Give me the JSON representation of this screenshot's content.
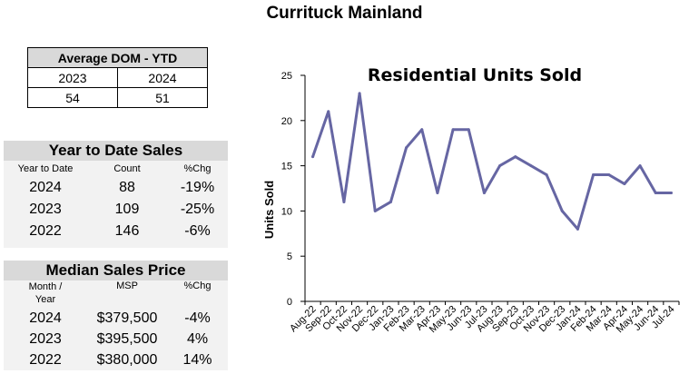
{
  "page": {
    "title": "Currituck Mainland"
  },
  "dom": {
    "title": "Average DOM - YTD",
    "years": [
      "2023",
      "2024"
    ],
    "values": [
      "54",
      "51"
    ]
  },
  "ytd": {
    "title": "Year to Date Sales",
    "headers": [
      "Year to Date",
      "Count",
      "%Chg"
    ],
    "rows": [
      [
        "2024",
        "88",
        "-19%"
      ],
      [
        "2023",
        "109",
        "-25%"
      ],
      [
        "2022",
        "146",
        "-6%"
      ]
    ]
  },
  "median": {
    "title": "Median Sales Price",
    "headers": [
      "Month /\nYear",
      "MSP",
      "%Chg"
    ],
    "rows": [
      [
        "2024",
        "$379,500",
        "-4%"
      ],
      [
        "2023",
        "$395,500",
        "4%"
      ],
      [
        "2022",
        "$380,000",
        "14%"
      ]
    ]
  },
  "chart_data": {
    "type": "line",
    "title": "Residential Units Sold",
    "xlabel": "",
    "ylabel": "Units Sold",
    "ylim": [
      0,
      25
    ],
    "yticks": [
      0,
      5,
      10,
      15,
      20,
      25
    ],
    "grid": false,
    "line_color": "#6666a3",
    "categories": [
      "Aug-22",
      "Sep-22",
      "Oct-22",
      "Nov-22",
      "Dec-22",
      "Jan-23",
      "Feb-23",
      "Mar-23",
      "Apr-23",
      "May-23",
      "Jun-23",
      "Jul-23",
      "Aug-23",
      "Sep-23",
      "Oct-23",
      "Nov-23",
      "Dec-23",
      "Jan-24",
      "Feb-24",
      "Mar-24",
      "Apr-24",
      "May-24",
      "Jun-24",
      "Jul-24"
    ],
    "values": [
      16,
      21,
      11,
      23,
      10,
      11,
      17,
      19,
      12,
      19,
      19,
      12,
      15,
      16,
      15,
      14,
      10,
      8,
      14,
      14,
      13,
      15,
      12,
      12
    ]
  }
}
